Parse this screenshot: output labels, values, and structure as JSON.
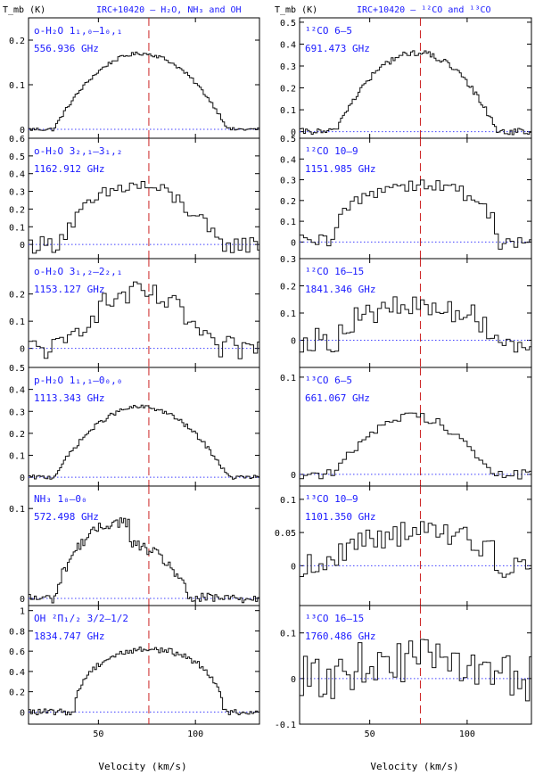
{
  "figure": {
    "left_title": "IRC+10420 – H₂O, NH₃ and OH",
    "right_title": "IRC+10420 – ¹²CO and ¹³CO",
    "ylabel": "T_mb (K)",
    "xlabel": "Velocity (km/s)",
    "colors": {
      "line_label": "#1a1aff",
      "baseline": "#4040ff",
      "vline": "#cc2222",
      "spectrum": "#111111"
    }
  },
  "chart_data": [
    {
      "type": "line",
      "column": "left",
      "line": "o-H₂O 1₁,₀–1₀,₁",
      "freq": "556.936 GHz",
      "ylim": [
        -0.02,
        0.25
      ],
      "yticks": [
        0,
        0.1,
        0.2
      ],
      "yticklabels": [
        "0",
        "0.1",
        "0.2"
      ],
      "xlim": [
        14,
        133
      ],
      "xticks": [
        50,
        100
      ],
      "xticklabels": [
        "",
        ""
      ],
      "vline": 76,
      "center": 72,
      "halfwidth": 45,
      "peak": 0.17,
      "shape": "dome",
      "noise": 0.004,
      "step": 1
    },
    {
      "type": "line",
      "column": "left",
      "line": "o-H₂O 3₂,₁–3₁,₂",
      "freq": "1162.912 GHz",
      "ylim": [
        -0.08,
        0.6
      ],
      "yticks": [
        0,
        0.1,
        0.2,
        0.3,
        0.4,
        0.5,
        0.6
      ],
      "yticklabels": [
        "0",
        "0.1",
        "0.2",
        "0.3",
        "0.4",
        "0.5",
        "0.6"
      ],
      "xlim": [
        14,
        133
      ],
      "xticks": [
        50,
        100
      ],
      "xticklabels": [
        "",
        ""
      ],
      "vline": 76,
      "center": 70,
      "halfwidth": 42,
      "peak": 0.33,
      "shape": "dome",
      "noise": 0.05,
      "step": 2
    },
    {
      "type": "line",
      "column": "left",
      "line": "o-H₂O 3₁,₂–2₂,₁",
      "freq": "1153.127 GHz",
      "ylim": [
        -0.07,
        0.33
      ],
      "yticks": [
        0,
        0.1,
        0.2
      ],
      "yticklabels": [
        "0",
        "0.1",
        "0.2"
      ],
      "xlim": [
        14,
        133
      ],
      "xticks": [
        50,
        100
      ],
      "xticklabels": [
        "",
        ""
      ],
      "vline": 76,
      "center": 70,
      "halfwidth": 38,
      "peak": 0.2,
      "shape": "dome",
      "noise": 0.045,
      "step": 2
    },
    {
      "type": "line",
      "column": "left",
      "line": "p-H₂O 1₁,₁–0₀,₀",
      "freq": "1113.343 GHz",
      "ylim": [
        -0.04,
        0.5
      ],
      "yticks": [
        0,
        0.1,
        0.2,
        0.3,
        0.4,
        0.5
      ],
      "yticklabels": [
        "0",
        "0.1",
        "0.2",
        "0.3",
        "0.4",
        "0.5"
      ],
      "xlim": [
        14,
        133
      ],
      "xticks": [
        50,
        100
      ],
      "xticklabels": [
        "",
        ""
      ],
      "vline": 76,
      "center": 72,
      "halfwidth": 45,
      "peak": 0.32,
      "shape": "dome",
      "noise": 0.01,
      "step": 1
    },
    {
      "type": "line",
      "column": "left",
      "line": "NH₃ 1₀–0₀",
      "freq": "572.498 GHz",
      "ylim": [
        -0.008,
        0.125
      ],
      "yticks": [
        0,
        0.1
      ],
      "yticklabels": [
        "0",
        "0.1"
      ],
      "xlim": [
        14,
        133
      ],
      "xticks": [
        50,
        100
      ],
      "xticklabels": [
        "",
        ""
      ],
      "vline": 76,
      "center": 68,
      "halfwidth": 40,
      "peak": 0.085,
      "shape": "nh3",
      "noise": 0.006,
      "step": 1
    },
    {
      "type": "line",
      "column": "left",
      "line": "OH ²Π₁/₂ 3/2–1/2",
      "freq": "1834.747 GHz",
      "ylim": [
        -0.12,
        1.05
      ],
      "yticks": [
        0,
        0.2,
        0.4,
        0.6,
        0.8,
        1
      ],
      "yticklabels": [
        "0",
        "0.2",
        "0.4",
        "0.6",
        "0.8",
        "1"
      ],
      "xlim": [
        14,
        133
      ],
      "xticks": [
        50,
        100
      ],
      "xticklabels": [
        "50",
        "100"
      ],
      "vline": 76,
      "center": 76,
      "halfwidth": 38,
      "peak": 0.62,
      "shape": "flat",
      "noise": 0.03,
      "step": 1
    },
    {
      "type": "line",
      "column": "right",
      "line": "¹²CO 6–5",
      "freq": "691.473 GHz",
      "ylim": [
        -0.03,
        0.52
      ],
      "yticks": [
        0,
        0.1,
        0.2,
        0.3,
        0.4,
        0.5
      ],
      "yticklabels": [
        "0",
        "0.1",
        "0.2",
        "0.3",
        "0.4",
        "0.5"
      ],
      "xlim": [
        14,
        133
      ],
      "xticks": [
        50,
        100
      ],
      "xticklabels": [
        "",
        ""
      ],
      "vline": 76,
      "center": 74,
      "halfwidth": 42,
      "peak": 0.36,
      "shape": "dome",
      "noise": 0.015,
      "step": 1
    },
    {
      "type": "line",
      "column": "right",
      "line": "¹²CO 10–9",
      "freq": "1151.985 GHz",
      "ylim": [
        -0.08,
        0.5
      ],
      "yticks": [
        0,
        0.1,
        0.2,
        0.3,
        0.4,
        0.5
      ],
      "yticklabels": [
        "0",
        "0.1",
        "0.2",
        "0.3",
        "0.4",
        "0.5"
      ],
      "xlim": [
        14,
        133
      ],
      "xticks": [
        50,
        100
      ],
      "xticklabels": [
        "",
        ""
      ],
      "vline": 76,
      "center": 74,
      "halfwidth": 42,
      "peak": 0.28,
      "shape": "flat",
      "noise": 0.035,
      "step": 2
    },
    {
      "type": "line",
      "column": "right",
      "line": "¹²CO 16–15",
      "freq": "1841.346 GHz",
      "ylim": [
        -0.1,
        0.3
      ],
      "yticks": [
        0,
        0.1,
        0.2,
        0.3
      ],
      "yticklabels": [
        "0",
        "0.1",
        "0.2",
        "0.3"
      ],
      "xlim": [
        14,
        133
      ],
      "xticks": [
        50,
        100
      ],
      "xticklabels": [
        "",
        ""
      ],
      "vline": 76,
      "center": 74,
      "halfwidth": 40,
      "peak": 0.12,
      "shape": "flat",
      "noise": 0.045,
      "step": 2
    },
    {
      "type": "line",
      "column": "right",
      "line": "¹³CO 6–5",
      "freq": "661.067 GHz",
      "ylim": [
        -0.012,
        0.11
      ],
      "yticks": [
        0,
        0.1
      ],
      "yticklabels": [
        "0",
        "0.1"
      ],
      "xlim": [
        14,
        133
      ],
      "xticks": [
        50,
        100
      ],
      "xticklabels": [
        "",
        ""
      ],
      "vline": 76,
      "center": 72,
      "halfwidth": 40,
      "peak": 0.06,
      "shape": "dome",
      "noise": 0.005,
      "step": 2
    },
    {
      "type": "line",
      "column": "right",
      "line": "¹³CO 10–9",
      "freq": "1101.350 GHz",
      "ylim": [
        -0.06,
        0.12
      ],
      "yticks": [
        0,
        0.05,
        0.1
      ],
      "yticklabels": [
        "0",
        "0.05",
        "0.1"
      ],
      "xlim": [
        14,
        133
      ],
      "xticks": [
        50,
        100
      ],
      "xticklabels": [
        "",
        ""
      ],
      "vline": 76,
      "center": 74,
      "halfwidth": 42,
      "peak": 0.05,
      "shape": "flat",
      "noise": 0.02,
      "step": 2
    },
    {
      "type": "line",
      "column": "right",
      "line": "¹³CO 16–15",
      "freq": "1760.486 GHz",
      "ylim": [
        -0.1,
        0.16
      ],
      "yticks": [
        -0.1,
        0,
        0.1
      ],
      "yticklabels": [
        "-0.1",
        "0",
        "0.1"
      ],
      "xlim": [
        14,
        133
      ],
      "xticks": [
        50,
        100
      ],
      "xticklabels": [
        "50",
        "100"
      ],
      "vline": 76,
      "center": 74,
      "halfwidth": 40,
      "peak": 0.04,
      "shape": "flat",
      "noise": 0.05,
      "step": 2
    }
  ]
}
